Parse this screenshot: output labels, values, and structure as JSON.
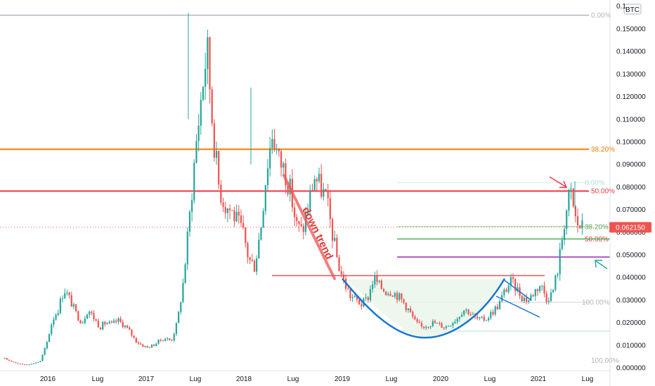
{
  "chart_data": {
    "type": "candlestick",
    "currency": "BTC",
    "ylim": [
      0,
      0.16
    ],
    "y_ticks": [
      "0.000000",
      "0.010000",
      "0.020000",
      "0.030000",
      "0.040000",
      "0.050000",
      "0.060000",
      "0.070000",
      "0.080000",
      "0.090000",
      "0.100000",
      "0.110000",
      "0.120000",
      "0.130000",
      "0.140000",
      "0.150000"
    ],
    "y_top_label": "0.1",
    "x_ticks": [
      "2016",
      "Lug",
      "2017",
      "Lug",
      "2018",
      "Lug",
      "2019",
      "Lug",
      "2020",
      "Lug",
      "2021",
      "Lug"
    ],
    "last_price": "0.062150",
    "last_price_color": "#ef5350",
    "up_color": "#26a69a",
    "down_color": "#ef5350",
    "close_series": [
      0.004,
      0.003,
      0.002,
      0.0015,
      0.0015,
      0.002,
      0.003,
      0.01,
      0.021,
      0.026,
      0.035,
      0.03,
      0.024,
      0.02,
      0.026,
      0.022,
      0.018,
      0.02,
      0.019,
      0.021,
      0.019,
      0.016,
      0.012,
      0.01,
      0.009,
      0.01,
      0.012,
      0.013,
      0.012,
      0.02,
      0.038,
      0.065,
      0.095,
      0.12,
      0.142,
      0.105,
      0.08,
      0.072,
      0.07,
      0.065,
      0.06,
      0.048,
      0.045,
      0.062,
      0.088,
      0.105,
      0.092,
      0.088,
      0.078,
      0.063,
      0.06,
      0.072,
      0.085,
      0.08,
      0.075,
      0.06,
      0.046,
      0.038,
      0.032,
      0.03,
      0.028,
      0.031,
      0.04,
      0.036,
      0.034,
      0.034,
      0.032,
      0.029,
      0.025,
      0.02,
      0.018,
      0.019,
      0.02,
      0.019,
      0.018,
      0.02,
      0.022,
      0.026,
      0.025,
      0.022,
      0.021,
      0.022,
      0.025,
      0.028,
      0.034,
      0.038,
      0.035,
      0.031,
      0.03,
      0.034,
      0.037,
      0.031,
      0.033,
      0.045,
      0.065,
      0.078,
      0.064,
      0.062
    ],
    "horizontal_levels": [
      {
        "value": 0.156,
        "color": "#b2b5be",
        "label": "0.00%"
      },
      {
        "value": 0.0967,
        "color": "#f57c00",
        "label": "38.20%"
      },
      {
        "value": 0.0782,
        "color": "#f23645",
        "label": "50.00%"
      },
      {
        "value": 0.0082,
        "color": "#b2b5be",
        "label": "100.00%"
      }
    ],
    "fib_retracement_2": [
      {
        "value": 0.082,
        "color": "#b2dfdb",
        "label": "0.00%"
      },
      {
        "value": 0.0625,
        "color": "#4caf50",
        "label": "38.20%"
      },
      {
        "value": 0.057,
        "color": "#f23645",
        "label": "50.00%"
      },
      {
        "value": 0.029,
        "color": "#b2b5be",
        "label": "100.00%"
      }
    ],
    "support_levels": [
      {
        "value": 0.057,
        "color": "#4caf50"
      },
      {
        "value": 0.049,
        "color": "#9c27b0"
      },
      {
        "value": 0.0408,
        "color": "#ef5350"
      }
    ],
    "annotations": {
      "trend_text": "down trend",
      "pattern": "cup and handle"
    }
  }
}
